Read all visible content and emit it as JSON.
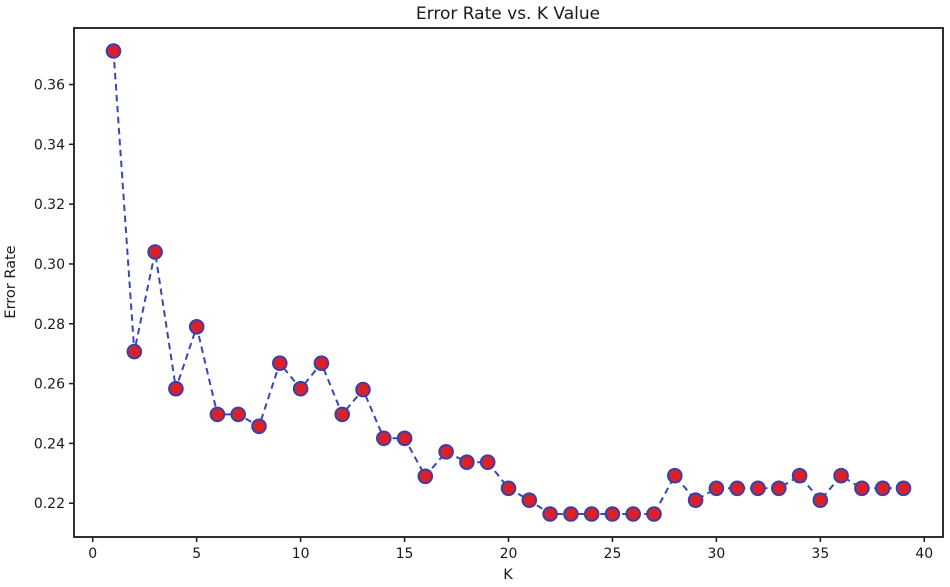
{
  "figure": {
    "background": "#ffffff"
  },
  "chart_data": {
    "type": "line",
    "title": "Error Rate vs. K Value",
    "xlabel": "K",
    "ylabel": "Error Rate",
    "x": [
      1,
      2,
      3,
      4,
      5,
      6,
      7,
      8,
      9,
      10,
      11,
      12,
      13,
      14,
      15,
      16,
      17,
      18,
      19,
      20,
      21,
      22,
      23,
      24,
      25,
      26,
      27,
      28,
      29,
      30,
      31,
      32,
      33,
      34,
      35,
      36,
      37,
      38,
      39
    ],
    "y": [
      0.3712,
      0.2707,
      0.304,
      0.2583,
      0.279,
      0.2497,
      0.2497,
      0.2457,
      0.2668,
      0.2583,
      0.2668,
      0.2497,
      0.258,
      0.2417,
      0.2417,
      0.229,
      0.2372,
      0.2337,
      0.2337,
      0.225,
      0.221,
      0.2164,
      0.2164,
      0.2164,
      0.2164,
      0.2164,
      0.2164,
      0.2292,
      0.221,
      0.225,
      0.225,
      0.225,
      0.225,
      0.2292,
      0.221,
      0.2292,
      0.225,
      0.225,
      0.225
    ],
    "xlim": [
      -0.9,
      40.9
    ],
    "ylim": [
      0.2087,
      0.3789
    ],
    "x_ticks": [
      0,
      5,
      10,
      15,
      20,
      25,
      30,
      35,
      40
    ],
    "y_ticks": [
      0.22,
      0.24,
      0.26,
      0.28,
      0.3,
      0.32,
      0.34,
      0.36
    ],
    "grid": false,
    "legend_position": "none",
    "line_style": "dashed",
    "line_color": "#3a46b2",
    "line_width": 2,
    "dash_pattern": [
      6.5,
      4.5
    ],
    "marker_shape": "circle",
    "marker_face_color": "#da2128",
    "marker_edge_color": "#3b3faa",
    "marker_radius": 6.8,
    "marker_edge_width": 2,
    "spine_color": "#1a1a1a",
    "tick_color": "#1a1a1a",
    "text_color": "#1a1a1a"
  }
}
